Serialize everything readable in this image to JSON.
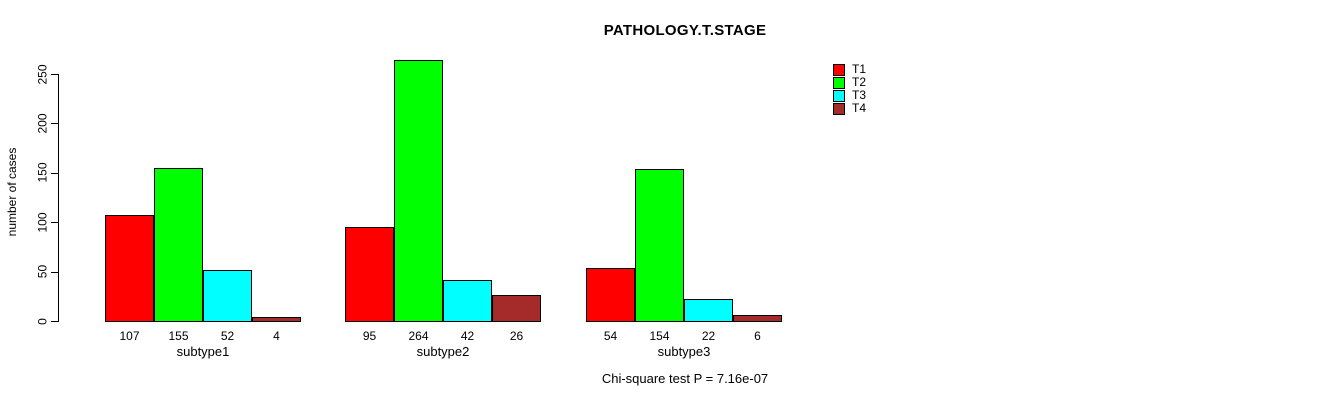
{
  "chart_data": {
    "type": "bar",
    "title": "PATHOLOGY.T.STAGE",
    "xlabel": "",
    "ylabel": "number of cases",
    "categories": [
      "subtype1",
      "subtype2",
      "subtype3"
    ],
    "series": [
      {
        "name": "T1",
        "color": "#ff0000",
        "values": [
          107,
          95,
          54
        ]
      },
      {
        "name": "T2",
        "color": "#00ff00",
        "values": [
          155,
          264,
          154
        ]
      },
      {
        "name": "T3",
        "color": "#00ffff",
        "values": [
          52,
          42,
          22
        ]
      },
      {
        "name": "T4",
        "color": "#a52a2a",
        "values": [
          4,
          26,
          6
        ]
      }
    ],
    "bar_value_labels": [
      [
        "107",
        "155",
        "52",
        "4"
      ],
      [
        "95",
        "264",
        "42",
        "26"
      ],
      [
        "54",
        "154",
        "22",
        "6"
      ]
    ],
    "yticks": [
      0,
      50,
      100,
      150,
      200,
      250
    ],
    "ylim": [
      0,
      250
    ],
    "grid": false,
    "legend_position": "top-right",
    "legend_labels": [
      "T1",
      "T2",
      "T3",
      "T4"
    ],
    "annotation": "Chi-square test P = 7.16e-07",
    "colors": {
      "background": "#ffffff",
      "axis": "#000000",
      "text": "#000000",
      "bar_border": "#000000"
    }
  }
}
